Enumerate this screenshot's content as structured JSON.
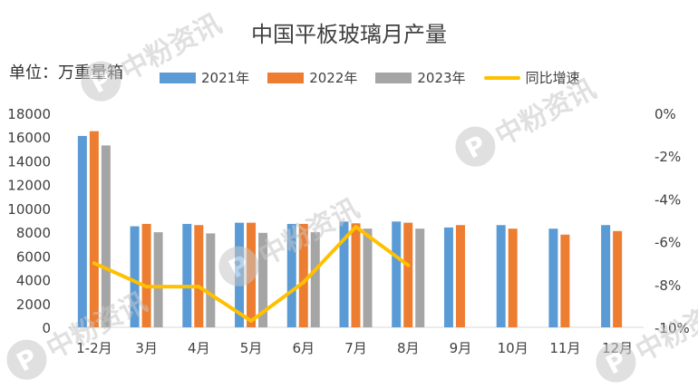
{
  "watermark": {
    "logo": "P",
    "text": "中粉资讯"
  },
  "chart_data": {
    "type": "bar",
    "title": "中国平板玻璃月产量",
    "unit_label": "单位：万重量箱",
    "categories": [
      "1-2月",
      "3月",
      "4月",
      "5月",
      "6月",
      "7月",
      "8月",
      "9月",
      "10月",
      "11月",
      "12月"
    ],
    "series": [
      {
        "name": "2021年",
        "type": "bar",
        "axis": "left",
        "color": "#5b9bd5",
        "values": [
          16100,
          8500,
          8700,
          8800,
          8700,
          8900,
          8900,
          8400,
          8600,
          8300,
          8600
        ]
      },
      {
        "name": "2022年",
        "type": "bar",
        "axis": "left",
        "color": "#ed7d31",
        "values": [
          16500,
          8700,
          8600,
          8800,
          8700,
          8750,
          8800,
          8600,
          8300,
          7800,
          8100
        ]
      },
      {
        "name": "2023年",
        "type": "bar",
        "axis": "left",
        "color": "#a5a5a5",
        "values": [
          15300,
          8000,
          7900,
          7950,
          8000,
          8300,
          8300,
          null,
          null,
          null,
          null
        ]
      },
      {
        "name": "同比增速",
        "type": "line",
        "axis": "right",
        "color": "#ffc000",
        "values": [
          -7.0,
          -8.1,
          -8.1,
          -9.7,
          -7.9,
          -5.3,
          -7.1,
          null,
          null,
          null,
          null
        ]
      }
    ],
    "y_left": {
      "min": 0,
      "max": 18000,
      "ticks": [
        0,
        2000,
        4000,
        6000,
        8000,
        10000,
        12000,
        14000,
        16000,
        18000
      ]
    },
    "y_right": {
      "min": -10,
      "max": 0,
      "ticks": [
        "0%",
        "-2%",
        "-4%",
        "-6%",
        "-8%",
        "-10%"
      ]
    },
    "grid": false,
    "legend_position": "top"
  }
}
